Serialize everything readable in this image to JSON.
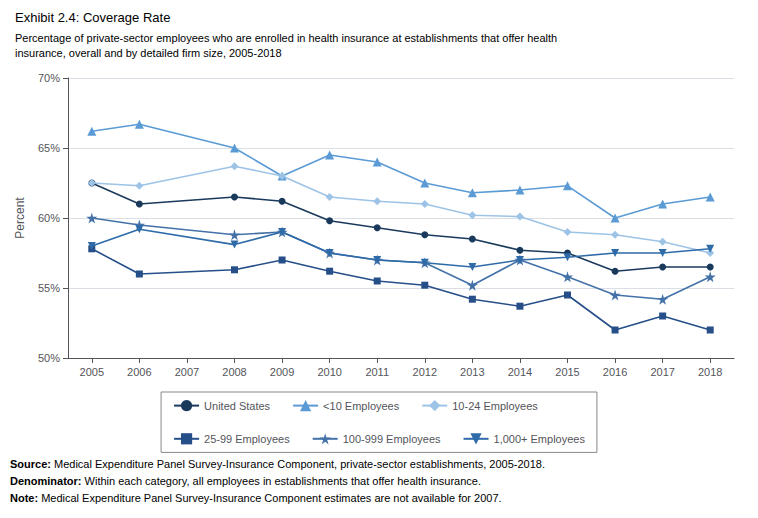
{
  "chart_data": {
    "type": "line",
    "title": "Exhibit 2.4: Coverage Rate",
    "subtitle": "Percentage of private-sector employees who are enrolled in health insurance at establishments that offer health\ninsurance, overall and by detailed firm size, 2005-2018",
    "ylabel": "Percent",
    "x": [
      2005,
      2006,
      2008,
      2009,
      2010,
      2011,
      2012,
      2013,
      2014,
      2015,
      2016,
      2017,
      2018
    ],
    "series": [
      {
        "name": "United States",
        "color": "#1a3a5c",
        "marker": "circle",
        "values": [
          62.5,
          61.0,
          61.5,
          61.2,
          59.8,
          59.3,
          58.8,
          58.5,
          57.7,
          57.5,
          56.2,
          56.5,
          56.5
        ]
      },
      {
        "name": "<10 Employees",
        "color": "#5b9bd5",
        "marker": "triangle-up",
        "values": [
          66.2,
          66.7,
          65.0,
          63.0,
          64.5,
          64.0,
          62.5,
          61.8,
          62.0,
          62.3,
          60.0,
          61.0,
          61.5
        ]
      },
      {
        "name": "10-24 Employees",
        "color": "#9dc3e6",
        "marker": "diamond",
        "values": [
          62.5,
          62.3,
          63.7,
          63.0,
          61.5,
          61.2,
          61.0,
          60.2,
          60.1,
          59.0,
          58.8,
          58.3,
          57.5
        ]
      },
      {
        "name": "25-99 Employees",
        "color": "#264f8a",
        "marker": "square",
        "values": [
          57.8,
          56.0,
          56.3,
          57.0,
          56.2,
          55.5,
          55.2,
          54.2,
          53.7,
          54.5,
          52.0,
          53.0,
          52.0
        ]
      },
      {
        "name": "100-999 Employees",
        "color": "#4472a8",
        "marker": "star",
        "values": [
          60.0,
          59.5,
          58.8,
          59.0,
          57.5,
          57.0,
          56.8,
          55.2,
          57.0,
          55.8,
          54.5,
          54.2,
          55.8
        ]
      },
      {
        "name": "1,000+ Employees",
        "color": "#2e6ba8",
        "marker": "triangle-down",
        "values": [
          58.0,
          59.2,
          58.1,
          59.0,
          57.5,
          57.0,
          56.8,
          56.5,
          57.0,
          57.2,
          57.5,
          57.5,
          57.8
        ]
      }
    ],
    "xlim": [
      2004.5,
      2018.5
    ],
    "xticks": [
      2005,
      2006,
      2007,
      2008,
      2009,
      2010,
      2011,
      2012,
      2013,
      2014,
      2015,
      2016,
      2017,
      2018
    ],
    "ylim": [
      50,
      70
    ],
    "yticks": [
      {
        "value": 50,
        "label": "50%"
      },
      {
        "value": 55,
        "label": "55%"
      },
      {
        "value": 60,
        "label": "60%"
      },
      {
        "value": 65,
        "label": "65%"
      },
      {
        "value": 70,
        "label": "70%"
      }
    ],
    "grid": true,
    "legend": "bottom",
    "annotations": [
      {
        "label": "Source:",
        "text": " Medical Expenditure Panel Survey-Insurance Component, private-sector establishments, 2005-2018."
      },
      {
        "label": "Denominator:",
        "text": " Within each category, all employees in establishments that offer health insurance."
      },
      {
        "label": "Note:",
        "text": " Medical Expenditure Panel Survey-Insurance Component estimates are not available for 2007."
      }
    ]
  }
}
